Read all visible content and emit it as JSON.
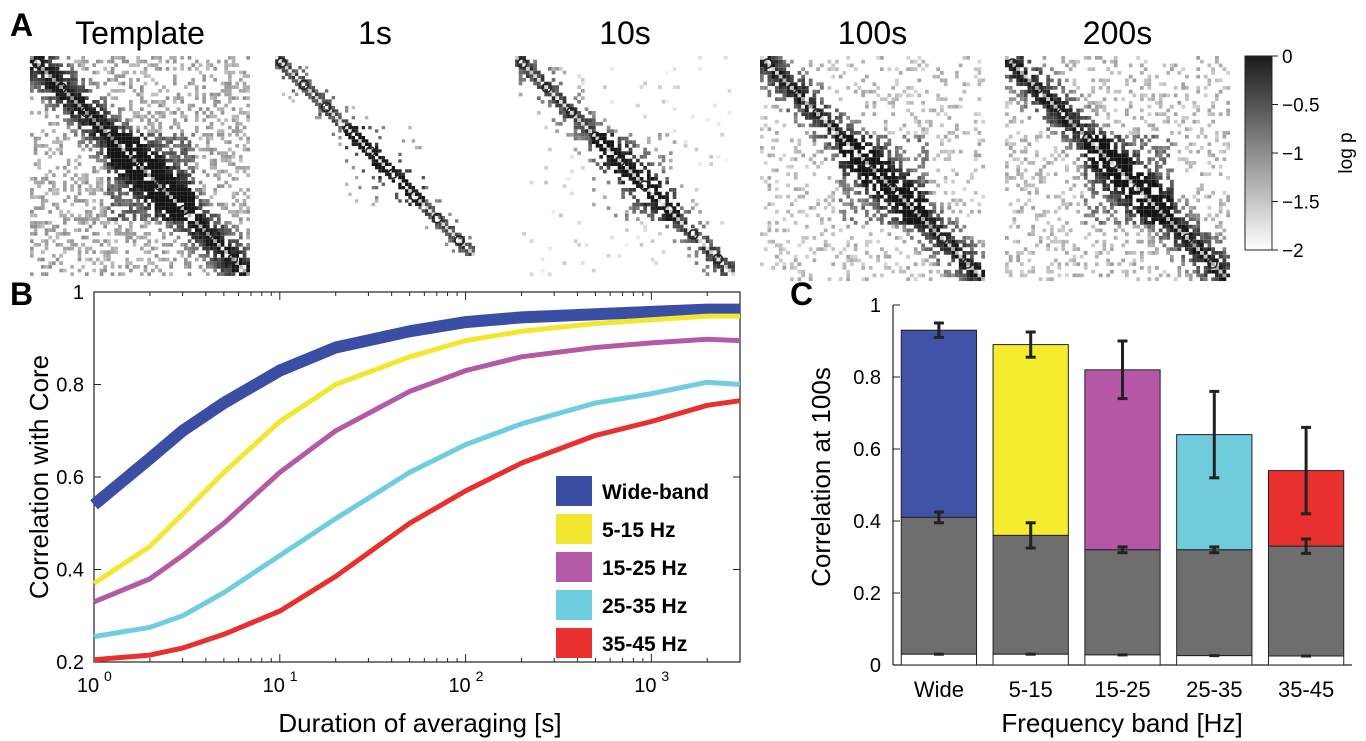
{
  "panel_letters": {
    "a": "A",
    "b": "B",
    "c": "C"
  },
  "panel_a": {
    "matrix_titles": [
      "Template",
      "1s",
      "10s",
      "100s",
      "200s"
    ],
    "colorbar": {
      "label": "log p",
      "ticks": [
        "0",
        "−0.5",
        "−1",
        "−1.5",
        "−2"
      ]
    }
  },
  "chart_data": [
    {
      "type": "line",
      "panel": "B",
      "xlabel": "Duration of averaging [s]",
      "ylabel": "Correlation with Core",
      "xscale": "log",
      "xlim": [
        1,
        3000
      ],
      "ylim": [
        0.2,
        1
      ],
      "x_tick_labels": [
        "10",
        "10",
        "10",
        "10"
      ],
      "x_tick_exponents": [
        "0",
        "1",
        "2",
        "3"
      ],
      "y_tick_labels": [
        "0.2",
        "0.4",
        "0.6",
        "0.8",
        "1"
      ],
      "legend_position": "lower-right",
      "series": [
        {
          "name": "Wide-band",
          "color": "#3a4fa3",
          "x": [
            1,
            2,
            3,
            5,
            10,
            20,
            50,
            100,
            200,
            500,
            1000,
            2000,
            3000
          ],
          "y": [
            0.54,
            0.64,
            0.7,
            0.76,
            0.83,
            0.88,
            0.915,
            0.935,
            0.945,
            0.952,
            0.957,
            0.962,
            0.962
          ]
        },
        {
          "name": "5-15 Hz",
          "color": "#f2e62e",
          "x": [
            1,
            2,
            3,
            5,
            10,
            20,
            50,
            100,
            200,
            500,
            1000,
            2000,
            3000
          ],
          "y": [
            0.37,
            0.45,
            0.52,
            0.61,
            0.72,
            0.8,
            0.86,
            0.895,
            0.915,
            0.932,
            0.94,
            0.948,
            0.948
          ]
        },
        {
          "name": "15-25 Hz",
          "color": "#b35aa6",
          "x": [
            1,
            2,
            3,
            5,
            10,
            20,
            50,
            100,
            200,
            500,
            1000,
            2000,
            3000
          ],
          "y": [
            0.33,
            0.38,
            0.43,
            0.5,
            0.61,
            0.7,
            0.785,
            0.83,
            0.86,
            0.88,
            0.89,
            0.898,
            0.895
          ]
        },
        {
          "name": "25-35 Hz",
          "color": "#6fcde0",
          "x": [
            1,
            2,
            3,
            5,
            10,
            20,
            50,
            100,
            200,
            500,
            1000,
            2000,
            3000
          ],
          "y": [
            0.255,
            0.275,
            0.3,
            0.35,
            0.43,
            0.51,
            0.61,
            0.67,
            0.715,
            0.76,
            0.78,
            0.805,
            0.8
          ]
        },
        {
          "name": "35-45 Hz",
          "color": "#e8302e",
          "x": [
            1,
            2,
            3,
            5,
            10,
            20,
            50,
            100,
            200,
            500,
            1000,
            2000,
            3000
          ],
          "y": [
            0.205,
            0.215,
            0.23,
            0.26,
            0.31,
            0.385,
            0.5,
            0.57,
            0.63,
            0.69,
            0.72,
            0.755,
            0.765
          ]
        }
      ]
    },
    {
      "type": "bar",
      "panel": "C",
      "xlabel": "Frequency band [Hz]",
      "ylabel": "Correlation at 100s",
      "ylim": [
        0,
        1
      ],
      "y_tick_labels": [
        "0",
        "0.2",
        "0.4",
        "0.6",
        "0.8",
        "1"
      ],
      "categories": [
        "Wide",
        "5-15",
        "15-25",
        "25-35",
        "35-45"
      ],
      "colors": [
        "#4053a8",
        "#f5ec2f",
        "#b556a7",
        "#70cbdc",
        "#e83030"
      ],
      "baseline_color": "#6e6e6e",
      "values": [
        0.93,
        0.89,
        0.82,
        0.64,
        0.54
      ],
      "errors": [
        0.02,
        0.035,
        0.08,
        0.12,
        0.12
      ],
      "baseline_values": [
        0.41,
        0.36,
        0.32,
        0.32,
        0.33
      ],
      "baseline_errors": [
        0.015,
        0.035,
        0.008,
        0.008,
        0.02
      ],
      "floor_values": [
        0.03,
        0.03,
        0.028,
        0.026,
        0.025
      ]
    }
  ]
}
